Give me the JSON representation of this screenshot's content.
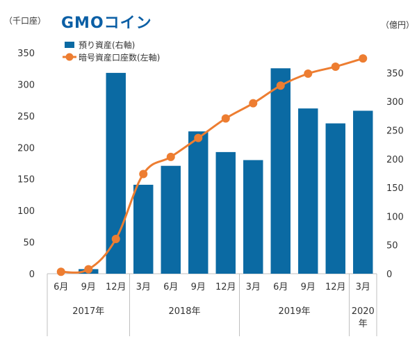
{
  "header": {
    "left_unit": "（千口座）",
    "right_unit": "（億円）",
    "logo_text": "GMOコイン"
  },
  "colors": {
    "bar": "#0b6aa3",
    "line": "#ed7d31",
    "axis": "#bfbfbf",
    "logo": "#0b5fa5"
  },
  "chart_data": {
    "type": "bar",
    "categories": [
      "6月",
      "9月",
      "12月",
      "3月",
      "6月",
      "9月",
      "12月",
      "3月",
      "6月",
      "9月",
      "12月",
      "3月"
    ],
    "year_groups": [
      {
        "label": "2017年",
        "count": 3
      },
      {
        "label": "2018年",
        "count": 4
      },
      {
        "label": "2019年",
        "count": 4
      },
      {
        "label": "2020\n年",
        "count": 1
      }
    ],
    "series": [
      {
        "name": "預り資産(右軸)",
        "type": "bar",
        "axis": "right",
        "values": [
          0,
          8,
          350,
          155,
          188,
          248,
          212,
          198,
          358,
          288,
          262,
          284
        ]
      },
      {
        "name": "暗号資産口座数(左軸)",
        "type": "line",
        "axis": "left",
        "values": [
          3,
          7,
          55,
          158,
          185,
          215,
          246,
          270,
          298,
          317,
          328,
          341
        ]
      }
    ],
    "y_left": {
      "ticks": [
        0,
        50,
        100,
        150,
        200,
        250,
        300,
        350
      ],
      "lim": [
        0,
        350
      ]
    },
    "y_right": {
      "ticks": [
        0,
        50,
        100,
        150,
        200,
        250,
        300,
        350
      ],
      "lim": [
        0,
        385
      ]
    },
    "legend_position": "top-left"
  }
}
